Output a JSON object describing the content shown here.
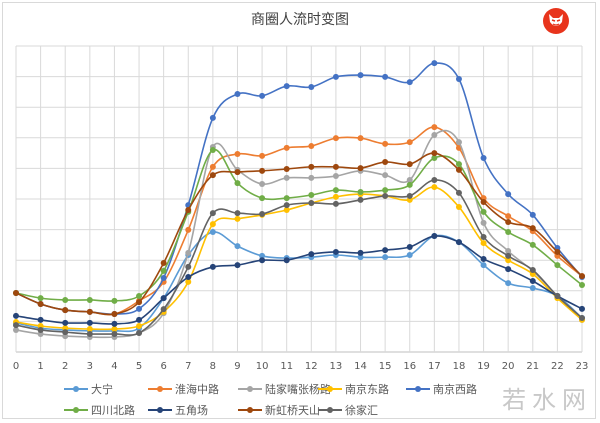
{
  "chart_data": {
    "type": "line",
    "title": "商圈人流时变图",
    "xlabel": "",
    "ylabel": "",
    "x": [
      0,
      1,
      2,
      3,
      4,
      5,
      6,
      7,
      8,
      9,
      10,
      11,
      12,
      13,
      14,
      15,
      16,
      17,
      18,
      19,
      20,
      21,
      22,
      23
    ],
    "ylim": [
      0,
      10
    ],
    "y_tick_labels_shown": false,
    "grid": true,
    "smooth": true,
    "markers": true,
    "legend_position": "bottom",
    "series": [
      {
        "name": "大宁",
        "color": "#5B9BD5",
        "values": [
          0.95,
          0.78,
          0.72,
          0.69,
          0.69,
          0.78,
          1.76,
          3.17,
          3.92,
          3.46,
          3.14,
          3.07,
          3.1,
          3.17,
          3.1,
          3.1,
          3.17,
          3.79,
          3.59,
          2.84,
          2.25,
          2.09,
          1.83,
          1.11
        ]
      },
      {
        "name": "淮海中路",
        "color": "#ED7D31",
        "values": [
          1.93,
          1.57,
          1.37,
          1.31,
          1.24,
          1.67,
          2.29,
          3.99,
          6.05,
          6.47,
          6.41,
          6.67,
          6.73,
          6.99,
          6.99,
          6.8,
          6.86,
          7.35,
          6.67,
          5.03,
          4.44,
          3.95,
          3.14,
          2.48
        ]
      },
      {
        "name": "陆家嘴张杨路",
        "color": "#A5A5A5",
        "values": [
          0.72,
          0.59,
          0.52,
          0.49,
          0.49,
          0.62,
          1.27,
          3.24,
          6.7,
          5.95,
          5.49,
          5.69,
          5.69,
          5.75,
          5.92,
          5.78,
          5.62,
          7.09,
          6.86,
          4.22,
          3.3,
          2.65,
          1.83,
          1.05
        ]
      },
      {
        "name": "南京东路",
        "color": "#FFC000",
        "values": [
          0.98,
          0.85,
          0.78,
          0.75,
          0.75,
          0.85,
          1.31,
          2.29,
          4.18,
          4.35,
          4.48,
          4.64,
          4.87,
          5.07,
          5.16,
          5.1,
          4.97,
          5.39,
          4.74,
          3.56,
          3.0,
          2.55,
          1.76,
          1.05
        ]
      },
      {
        "name": "南京西路",
        "color": "#4472C4",
        "values": [
          1.93,
          1.57,
          1.37,
          1.31,
          1.24,
          1.41,
          2.42,
          4.8,
          7.65,
          8.43,
          8.37,
          8.69,
          8.66,
          8.99,
          9.05,
          8.99,
          8.82,
          9.44,
          8.92,
          6.34,
          5.16,
          4.48,
          3.4,
          2.45
        ]
      },
      {
        "name": "四川北路",
        "color": "#70AD47",
        "values": [
          1.93,
          1.76,
          1.7,
          1.7,
          1.67,
          1.83,
          2.65,
          4.58,
          6.6,
          5.52,
          5.03,
          5.03,
          5.13,
          5.29,
          5.23,
          5.29,
          5.46,
          6.34,
          6.14,
          4.58,
          3.92,
          3.5,
          2.84,
          2.19
        ]
      },
      {
        "name": "五角场",
        "color": "#264478",
        "values": [
          1.18,
          1.05,
          0.95,
          0.95,
          0.92,
          1.05,
          1.76,
          2.45,
          2.78,
          2.84,
          3.0,
          3.0,
          3.2,
          3.27,
          3.24,
          3.33,
          3.43,
          3.79,
          3.59,
          3.04,
          2.71,
          2.32,
          1.83,
          1.41
        ]
      },
      {
        "name": "新虹桥天山",
        "color": "#9E480E",
        "values": [
          1.93,
          1.57,
          1.37,
          1.31,
          1.24,
          1.63,
          2.91,
          4.64,
          5.78,
          5.88,
          5.92,
          5.98,
          6.05,
          6.05,
          6.01,
          6.21,
          6.14,
          6.5,
          5.95,
          4.9,
          4.25,
          4.05,
          3.27,
          2.48
        ]
      },
      {
        "name": "徐家汇",
        "color": "#636363",
        "values": [
          0.88,
          0.72,
          0.65,
          0.59,
          0.59,
          0.62,
          1.4,
          2.78,
          4.54,
          4.54,
          4.51,
          4.8,
          4.87,
          4.84,
          4.97,
          5.1,
          5.1,
          5.62,
          5.2,
          3.76,
          3.14,
          2.68,
          1.83,
          1.11
        ]
      }
    ]
  },
  "logo": {
    "icon": "red-fox-face-logo",
    "color": "#E8341C"
  },
  "watermark": "若水网"
}
